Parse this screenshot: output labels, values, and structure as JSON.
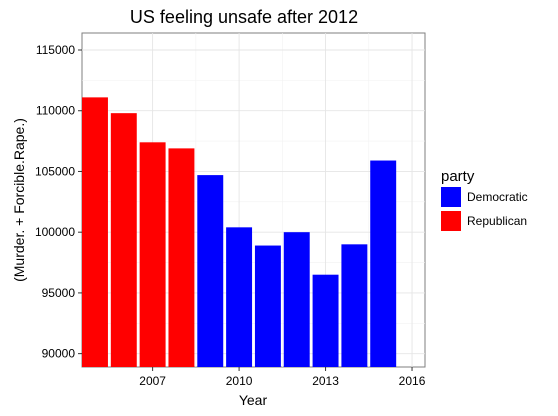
{
  "chart_data": {
    "type": "bar",
    "title": "US feeling unsafe after 2012",
    "xlabel": "Year",
    "ylabel": "(Murder. + Forcible.Rape.)",
    "xlim": [
      2004.55,
      2016.45
    ],
    "ylim": [
      88900,
      116400
    ],
    "x_ticks": [
      2007,
      2010,
      2013,
      2016
    ],
    "y_ticks": [
      90000,
      95000,
      100000,
      105000,
      110000,
      115000
    ],
    "grid": true,
    "legend": {
      "title": "party",
      "placement": "right"
    },
    "series": [
      {
        "name": "Republican",
        "color": "#ff0000",
        "x": [
          2005,
          2006,
          2007,
          2008
        ],
        "values": [
          111100,
          109800,
          107400,
          106900
        ]
      },
      {
        "name": "Democratic",
        "color": "#0000ff",
        "x": [
          2009,
          2010,
          2011,
          2012,
          2013,
          2014,
          2015
        ],
        "values": [
          104700,
          100400,
          98900,
          100000,
          96500,
          99000,
          105900
        ]
      }
    ],
    "legend_order": [
      "Democratic",
      "Republican"
    ]
  }
}
